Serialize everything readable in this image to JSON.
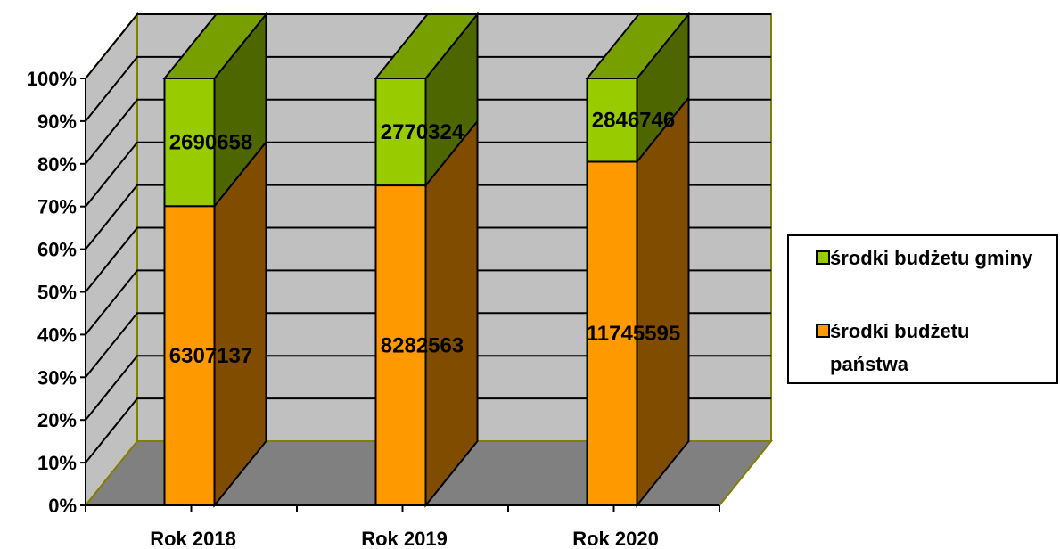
{
  "chart_data": {
    "type": "bar",
    "stacked": "percent",
    "three_d": true,
    "categories": [
      "Rok 2018",
      "Rok 2019",
      "Rok 2020"
    ],
    "series": [
      {
        "name": "środki budżetu państwa",
        "values": [
          6307137,
          8282563,
          11745595
        ],
        "color": "#FF9900"
      },
      {
        "name": "środki budżetu gminy",
        "values": [
          2690658,
          2770324,
          2846746
        ],
        "color": "#99CC00"
      }
    ],
    "y_ticks": [
      "0%",
      "10%",
      "20%",
      "30%",
      "40%",
      "50%",
      "60%",
      "70%",
      "80%",
      "90%",
      "100%"
    ],
    "ylim": [
      0,
      100
    ],
    "grid": true,
    "legend_position": "right",
    "colors": {
      "wall": "#C0C0C0",
      "floor": "#808080",
      "wall_border": "#808000"
    }
  },
  "legend": {
    "items": [
      {
        "label": "środki budżetu gminy",
        "color": "#99CC00"
      },
      {
        "label": "środki budżetu państwa",
        "color": "#FF9900"
      }
    ]
  }
}
